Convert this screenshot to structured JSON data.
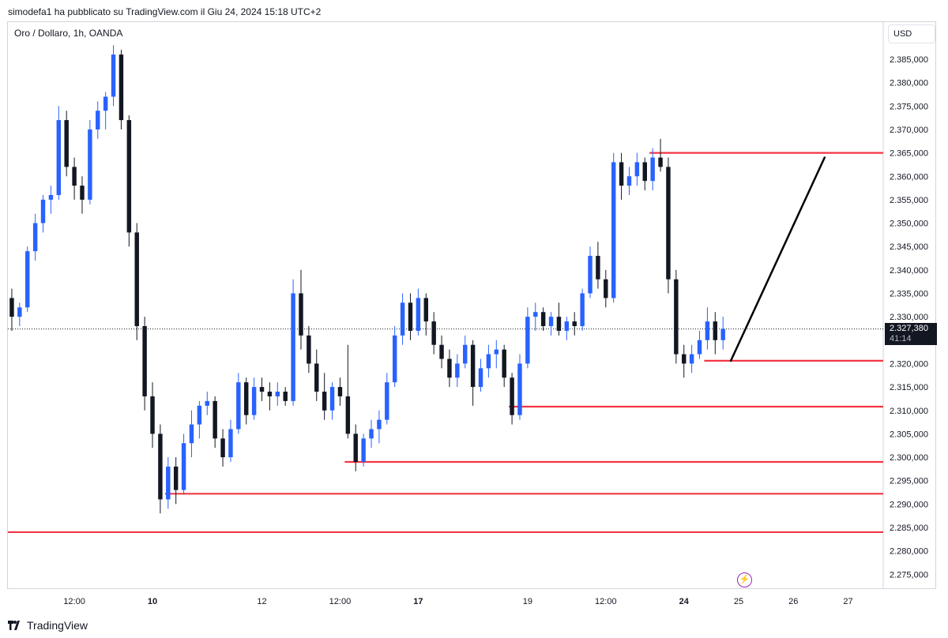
{
  "header": {
    "publisher_line": "simodefa1 ha pubblicato su TradingView.com il Giu 24, 2024 15:18 UTC+2"
  },
  "legend": {
    "instrument": "Oro / Dollaro, 1h, OANDA"
  },
  "axis": {
    "currency": "USD"
  },
  "price_label": {
    "price": "2.327,380",
    "countdown": "41:14"
  },
  "brand": {
    "name": "TradingView"
  },
  "icons": {
    "replay": "lightning-icon",
    "logo": "tradingview-logo-icon"
  },
  "colors": {
    "up": "#2962ff",
    "down": "#131722",
    "level": "#f23645",
    "trend": "#000000",
    "badge": "#131722"
  },
  "chart_data": {
    "type": "candlestick",
    "title": "Oro / Dollaro, 1h, OANDA",
    "currency": "USD",
    "ylim": [
      2270,
      2390
    ],
    "y_ticks": [
      "2.385,000",
      "2.380,000",
      "2.375,000",
      "2.370,000",
      "2.365,000",
      "2.360,000",
      "2.355,000",
      "2.350,000",
      "2.345,000",
      "2.340,000",
      "2.335,000",
      "2.330,000",
      "2.325,000",
      "2.320,000",
      "2.315,000",
      "2.310,000",
      "2.305,000",
      "2.300,000",
      "2.295,000",
      "2.290,000",
      "2.285,000",
      "2.280,000",
      "2.275,000"
    ],
    "x_ticks": [
      {
        "label": "12:00",
        "bar": 8,
        "bold": false
      },
      {
        "label": "10",
        "bar": 18,
        "bold": true
      },
      {
        "label": "12",
        "bar": 32,
        "bold": false
      },
      {
        "label": "12:00",
        "bar": 42,
        "bold": false
      },
      {
        "label": "17",
        "bar": 52,
        "bold": true
      },
      {
        "label": "19",
        "bar": 66,
        "bold": false
      },
      {
        "label": "12:00",
        "bar": 76,
        "bold": false
      },
      {
        "label": "24",
        "bar": 86,
        "bold": true
      },
      {
        "label": "25",
        "bar": 93,
        "bold": false
      },
      {
        "label": "26",
        "bar": 100,
        "bold": false
      },
      {
        "label": "27",
        "bar": 107,
        "bold": false
      }
    ],
    "current_price": 2327.38,
    "ohlc": [
      [
        2334,
        2336,
        2327,
        2330
      ],
      [
        2330,
        2333,
        2328,
        2332
      ],
      [
        2332,
        2345,
        2331,
        2344
      ],
      [
        2344,
        2352,
        2342,
        2350
      ],
      [
        2350,
        2356,
        2348,
        2355
      ],
      [
        2355,
        2358,
        2352,
        2356
      ],
      [
        2356,
        2375,
        2355,
        2372
      ],
      [
        2372,
        2374,
        2360,
        2362
      ],
      [
        2362,
        2364,
        2355,
        2358
      ],
      [
        2358,
        2360,
        2352,
        2355
      ],
      [
        2355,
        2372,
        2354,
        2370
      ],
      [
        2370,
        2376,
        2368,
        2374
      ],
      [
        2374,
        2378,
        2370,
        2377
      ],
      [
        2377,
        2388,
        2375,
        2386
      ],
      [
        2386,
        2387,
        2370,
        2372
      ],
      [
        2372,
        2373,
        2345,
        2348
      ],
      [
        2348,
        2350,
        2325,
        2328
      ],
      [
        2328,
        2330,
        2310,
        2313
      ],
      [
        2313,
        2316,
        2302,
        2305
      ],
      [
        2305,
        2307,
        2288,
        2291
      ],
      [
        2291,
        2300,
        2289,
        2298
      ],
      [
        2298,
        2300,
        2290,
        2293
      ],
      [
        2293,
        2305,
        2292,
        2303
      ],
      [
        2303,
        2310,
        2300,
        2307
      ],
      [
        2307,
        2312,
        2304,
        2311
      ],
      [
        2311,
        2314,
        2309,
        2312
      ],
      [
        2312,
        2313,
        2302,
        2304
      ],
      [
        2304,
        2306,
        2298,
        2300
      ],
      [
        2300,
        2308,
        2299,
        2306
      ],
      [
        2306,
        2318,
        2305,
        2316
      ],
      [
        2316,
        2317,
        2307,
        2309
      ],
      [
        2309,
        2317,
        2308,
        2315
      ],
      [
        2315,
        2317,
        2312,
        2314
      ],
      [
        2314,
        2316,
        2310,
        2313
      ],
      [
        2313,
        2316,
        2311,
        2314
      ],
      [
        2314,
        2315,
        2311,
        2312
      ],
      [
        2312,
        2338,
        2311,
        2335
      ],
      [
        2335,
        2340,
        2323,
        2326
      ],
      [
        2326,
        2328,
        2318,
        2320
      ],
      [
        2320,
        2323,
        2312,
        2314
      ],
      [
        2314,
        2318,
        2308,
        2310
      ],
      [
        2310,
        2316,
        2308,
        2315
      ],
      [
        2315,
        2317,
        2311,
        2313
      ],
      [
        2313,
        2324,
        2304,
        2305
      ],
      [
        2305,
        2307,
        2297,
        2299
      ],
      [
        2299,
        2305,
        2298,
        2304
      ],
      [
        2304,
        2308,
        2302,
        2306
      ],
      [
        2306,
        2310,
        2303,
        2308
      ],
      [
        2308,
        2318,
        2307,
        2316
      ],
      [
        2316,
        2328,
        2315,
        2326
      ],
      [
        2326,
        2335,
        2324,
        2333
      ],
      [
        2333,
        2335,
        2325,
        2327
      ],
      [
        2327,
        2336,
        2326,
        2334
      ],
      [
        2334,
        2335,
        2326,
        2329
      ],
      [
        2329,
        2331,
        2322,
        2324
      ],
      [
        2324,
        2326,
        2319,
        2321
      ],
      [
        2321,
        2323,
        2315,
        2317
      ],
      [
        2317,
        2322,
        2315,
        2320
      ],
      [
        2320,
        2326,
        2319,
        2324
      ],
      [
        2324,
        2325,
        2311,
        2315
      ],
      [
        2315,
        2321,
        2314,
        2319
      ],
      [
        2319,
        2324,
        2317,
        2322
      ],
      [
        2322,
        2325,
        2319,
        2323
      ],
      [
        2323,
        2324,
        2315,
        2317
      ],
      [
        2317,
        2318,
        2307,
        2309
      ],
      [
        2309,
        2322,
        2308,
        2320
      ],
      [
        2320,
        2332,
        2319,
        2330
      ],
      [
        2330,
        2333,
        2327,
        2331
      ],
      [
        2331,
        2332,
        2327,
        2328
      ],
      [
        2328,
        2331,
        2326,
        2330
      ],
      [
        2330,
        2333,
        2326,
        2327
      ],
      [
        2327,
        2330,
        2325,
        2329
      ],
      [
        2329,
        2331,
        2326,
        2328
      ],
      [
        2328,
        2336,
        2327,
        2335
      ],
      [
        2335,
        2345,
        2334,
        2343
      ],
      [
        2343,
        2346,
        2336,
        2338
      ],
      [
        2338,
        2340,
        2332,
        2334
      ],
      [
        2334,
        2365,
        2333,
        2363
      ],
      [
        2363,
        2365,
        2355,
        2358
      ],
      [
        2358,
        2362,
        2356,
        2360
      ],
      [
        2360,
        2365,
        2358,
        2363
      ],
      [
        2363,
        2364,
        2357,
        2359
      ],
      [
        2359,
        2366,
        2357,
        2364
      ],
      [
        2364,
        2368,
        2361,
        2362
      ],
      [
        2362,
        2364,
        2335,
        2338
      ],
      [
        2338,
        2340,
        2320,
        2322
      ],
      [
        2322,
        2324,
        2317,
        2320
      ],
      [
        2320,
        2324,
        2318,
        2322
      ],
      [
        2322,
        2327,
        2321,
        2325
      ],
      [
        2325,
        2332,
        2323,
        2329
      ],
      [
        2329,
        2331,
        2322,
        2325
      ],
      [
        2325,
        2330,
        2323,
        2327.38
      ]
    ],
    "horizontal_levels": [
      {
        "price": 2365.0,
        "from_bar": 82
      },
      {
        "price": 2320.6,
        "from_bar": 89
      },
      {
        "price": 2310.8,
        "from_bar": 64
      },
      {
        "price": 2299.0,
        "from_bar": 43
      },
      {
        "price": 2292.2,
        "from_bar": 20
      },
      {
        "price": 2284.0,
        "from_bar": 0
      }
    ],
    "trend_line": {
      "from": {
        "bar": 92,
        "price": 2320.6
      },
      "to": {
        "bar": 104,
        "price": 2364.0
      }
    }
  }
}
